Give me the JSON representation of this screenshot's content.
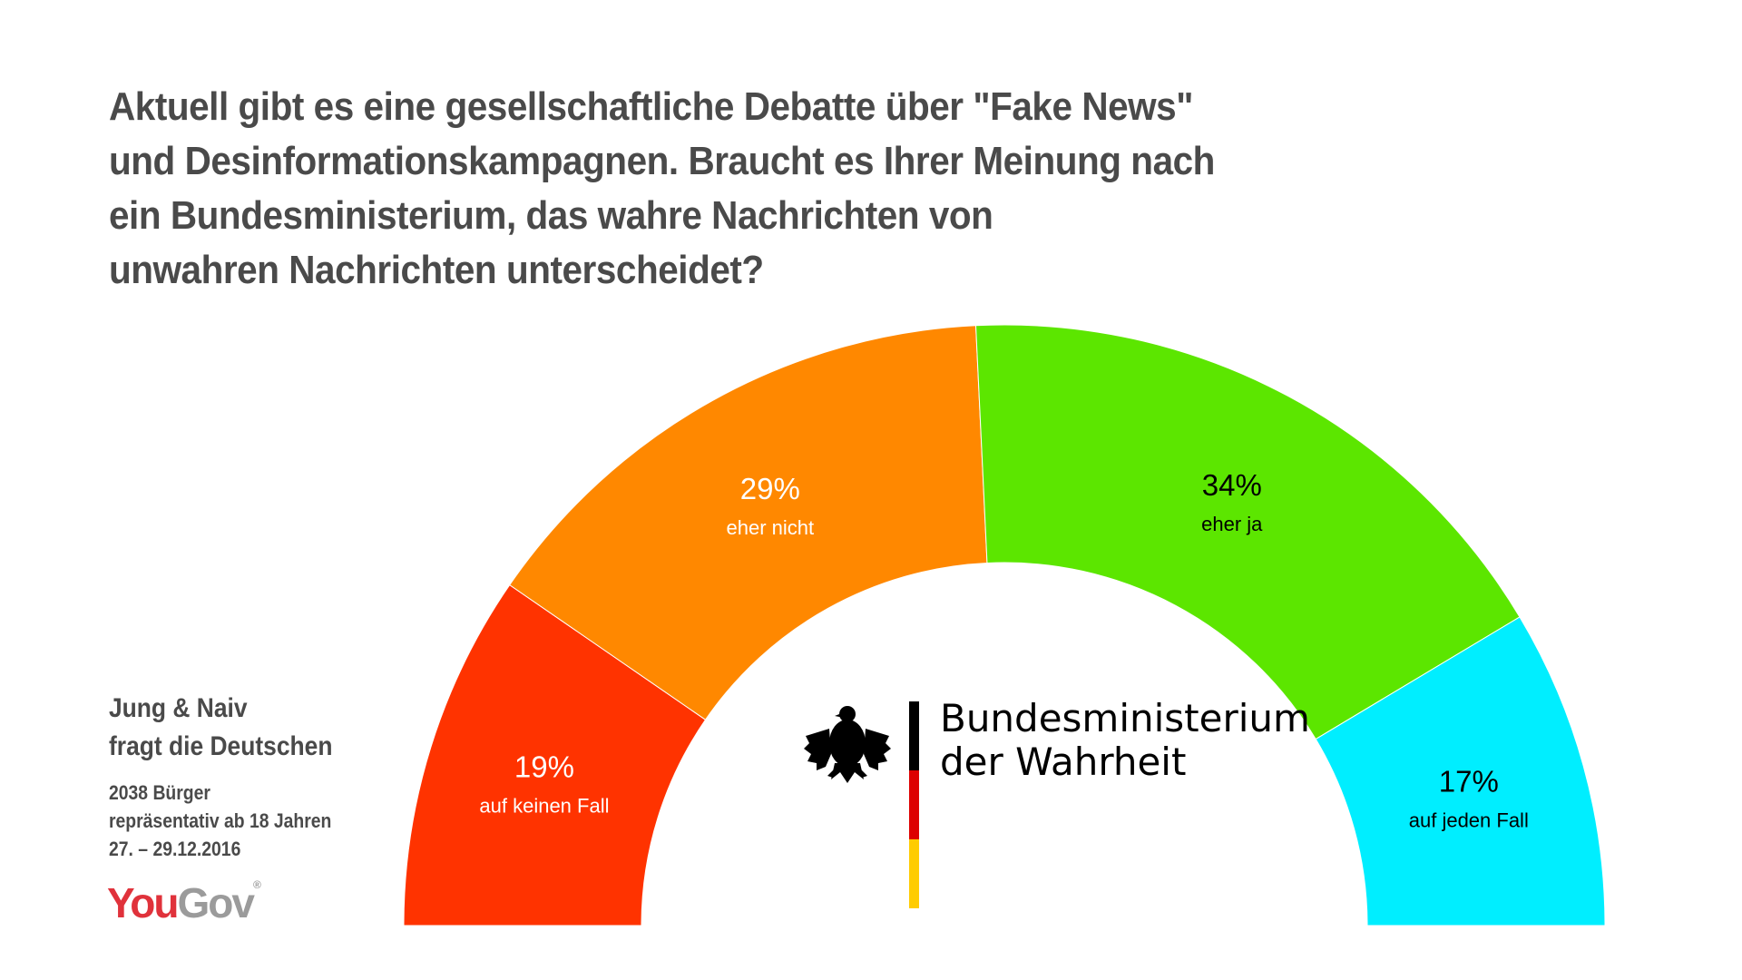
{
  "title_lines": [
    "Aktuell gibt es eine gesellschaftliche Debatte über \"Fake News\"",
    "und Desinformationskampagnen. Braucht es Ihrer Meinung nach",
    "ein Bundesministerium, das wahre Nachrichten von",
    "unwahren Nachrichten unterscheidet?"
  ],
  "source": {
    "line1": "Jung & Naiv",
    "line2": "fragt die Deutschen",
    "meta": [
      "2038 Bürger",
      "repräsentativ ab 18 Jahren",
      "27. – 29.12.2016"
    ]
  },
  "brand": {
    "you": "YouGov",
    "you_part": "You",
    "gov_part": "Gov",
    "reg": "®"
  },
  "ministry": {
    "line1": "Bundesministerium",
    "line2": "der Wahrheit"
  },
  "chart_data": {
    "type": "pie",
    "subtype": "half-donut",
    "categories": [
      "auf keinen Fall",
      "eher nicht",
      "eher ja",
      "auf jeden Fall"
    ],
    "values": [
      19,
      29,
      34,
      17
    ],
    "labels": [
      "19%",
      "29%",
      "34%",
      "17%"
    ],
    "colors": [
      "#ff3300",
      "#ff8800",
      "#5ce600",
      "#00eeff"
    ],
    "label_colors": [
      "#ffffff",
      "#ffffff",
      "#000000",
      "#000000"
    ]
  }
}
